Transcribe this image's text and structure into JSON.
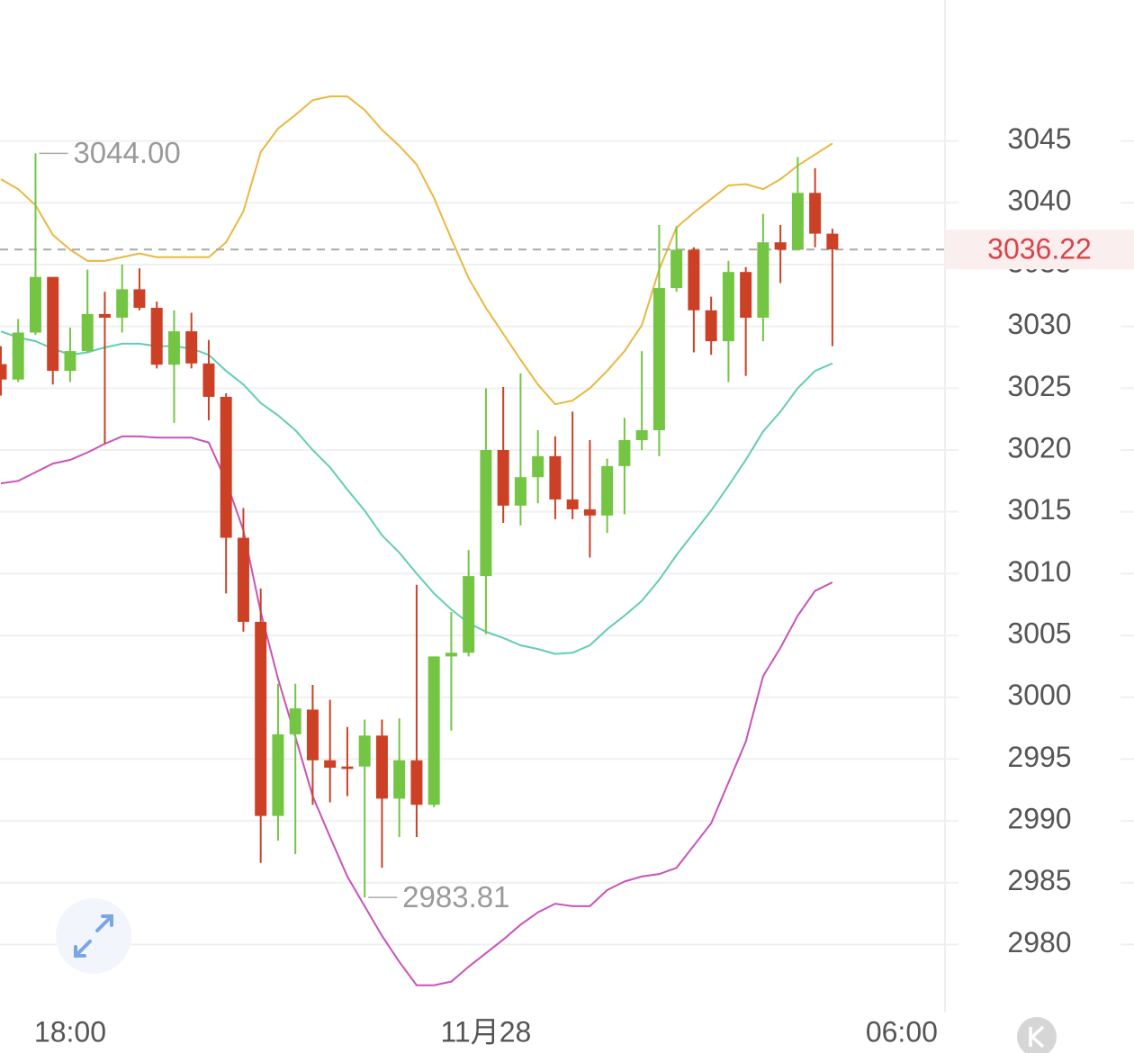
{
  "chart_data": {
    "type": "candlestick",
    "x": [
      -4,
      -3,
      -2,
      -1,
      0,
      1,
      2,
      3,
      4,
      5,
      6,
      7,
      8,
      9,
      10,
      11,
      12,
      13,
      14,
      15,
      16,
      17,
      18,
      19,
      20,
      21,
      22,
      23,
      24,
      25,
      26,
      27,
      28,
      29,
      30,
      31,
      32,
      33,
      34,
      35,
      36,
      37,
      38,
      39,
      40,
      41,
      42,
      43,
      44
    ],
    "open": [
      3026.95,
      3025.7,
      3029.5,
      3034.0,
      3026.4,
      3028.0,
      3031.0,
      3030.7,
      3033.0,
      3031.5,
      3026.9,
      3029.6,
      3027.0,
      3024.3,
      3012.9,
      3006.1,
      2990.4,
      2997.0,
      2999.0,
      2994.9,
      2994.4,
      2994.4,
      2996.9,
      2991.8,
      2994.9,
      2991.3,
      3003.3,
      3003.6,
      3009.8,
      3020.0,
      3015.5,
      3017.8,
      3019.5,
      3016.0,
      3015.2,
      3014.7,
      3018.7,
      3020.8,
      3021.6,
      3033.1,
      3036.2,
      3031.3,
      3028.8,
      3034.4,
      3030.7,
      3036.8,
      3036.2,
      3040.8,
      3037.5
    ],
    "high": [
      3028.4,
      3030.6,
      3044.0,
      3034.0,
      3029.9,
      3034.6,
      3032.8,
      3035.0,
      3034.7,
      3032.0,
      3031.3,
      3031.1,
      3028.9,
      3024.6,
      3015.3,
      3008.8,
      3001.1,
      3001.1,
      3001.0,
      2999.8,
      2997.6,
      2998.2,
      2998.2,
      2998.3,
      3009.1,
      3003.3,
      3006.9,
      3011.9,
      3025.0,
      3025.1,
      3026.2,
      3021.6,
      3021.1,
      3023.1,
      3020.8,
      3019.3,
      3022.6,
      3028.0,
      3038.2,
      3038.1,
      3036.4,
      3032.4,
      3035.3,
      3034.8,
      3039.1,
      3038.2,
      3043.7,
      3042.8,
      3037.9
    ],
    "low": [
      3024.4,
      3025.5,
      3029.3,
      3025.3,
      3025.5,
      3027.9,
      3020.5,
      3029.5,
      3031.3,
      3026.6,
      3022.2,
      3026.6,
      3022.4,
      3008.4,
      3005.3,
      2986.6,
      2988.4,
      2987.3,
      2991.3,
      2991.5,
      2992.0,
      2983.81,
      2986.2,
      2988.7,
      2988.7,
      2991.1,
      2997.3,
      3003.3,
      3005.1,
      3014.1,
      3013.9,
      3015.7,
      3014.4,
      3014.4,
      3011.3,
      3013.3,
      3014.8,
      3020.0,
      3019.5,
      3032.8,
      3027.9,
      3027.7,
      3025.5,
      3026.0,
      3028.8,
      3033.5,
      3036.2,
      3036.4,
      3028.4
    ],
    "close": [
      3025.7,
      3029.5,
      3034.0,
      3026.4,
      3028.0,
      3031.0,
      3030.7,
      3033.0,
      3031.5,
      3026.9,
      3029.6,
      3027.0,
      3024.3,
      3012.9,
      3006.1,
      2990.4,
      2997.0,
      2999.1,
      2994.9,
      2994.3,
      2994.2,
      2996.9,
      2991.8,
      2994.9,
      2991.3,
      3003.3,
      3003.6,
      3009.8,
      3020.0,
      3015.5,
      3017.8,
      3019.5,
      3016.0,
      3015.2,
      3014.7,
      3018.7,
      3020.8,
      3021.6,
      3033.1,
      3036.2,
      3031.3,
      3028.8,
      3034.4,
      3030.7,
      3036.8,
      3036.2,
      3040.8,
      3037.5,
      3036.22
    ],
    "up_color": "#74c544",
    "down_color": "#cc4126",
    "bands": [
      {
        "color": "#e8b840",
        "values": [
          3041.9,
          3041.1,
          3039.8,
          3037.4,
          3036.2,
          3035.3,
          3035.3,
          3035.6,
          3035.9,
          3035.6,
          3035.6,
          3035.6,
          3035.6,
          3036.8,
          3039.3,
          3044.1,
          3046.0,
          3047.1,
          3048.3,
          3048.6,
          3048.6,
          3047.5,
          3045.9,
          3044.6,
          3043.1,
          3040.4,
          3037.1,
          3033.9,
          3031.5,
          3029.4,
          3027.3,
          3025.3,
          3023.7,
          3024.0,
          3025.0,
          3026.4,
          3028.0,
          3030.1,
          3034.6,
          3038.0,
          3039.2,
          3040.3,
          3041.4,
          3041.5,
          3041.1,
          3041.9,
          3043.0,
          3043.9,
          3044.8
        ]
      },
      {
        "color": "#62cdb3",
        "values": [
          3029.6,
          3029.1,
          3028.8,
          3028.2,
          3027.7,
          3027.9,
          3028.3,
          3028.6,
          3028.6,
          3028.4,
          3028.4,
          3028.2,
          3027.7,
          3026.4,
          3025.3,
          3023.8,
          3022.8,
          3021.6,
          3020.0,
          3018.6,
          3016.8,
          3015.1,
          3013.1,
          3011.7,
          3010.0,
          3008.4,
          3007.1,
          3006.0,
          3005.3,
          3004.8,
          3004.2,
          3003.9,
          3003.5,
          3003.6,
          3004.2,
          3005.5,
          3006.6,
          3007.8,
          3009.5,
          3011.5,
          3013.3,
          3015.1,
          3017.1,
          3019.2,
          3021.5,
          3023.1,
          3025.0,
          3026.4,
          3027.0
        ]
      },
      {
        "color": "#c853b8",
        "values": [
          3017.3,
          3017.5,
          3018.2,
          3018.9,
          3019.2,
          3019.8,
          3020.5,
          3021.1,
          3021.1,
          3021.0,
          3021.0,
          3021.0,
          3020.6,
          3017.5,
          3013.5,
          3006.9,
          3001.5,
          2996.8,
          2992.0,
          2988.7,
          2985.5,
          2983.1,
          2980.7,
          2978.6,
          2976.7,
          2976.7,
          2977.0,
          2978.2,
          2979.3,
          2980.4,
          2981.6,
          2982.6,
          2983.3,
          2983.1,
          2983.1,
          2984.4,
          2985.1,
          2985.5,
          2985.7,
          2986.2,
          2988.0,
          2989.8,
          2993.1,
          2996.4,
          3001.7,
          3004.0,
          3006.6,
          3008.6,
          3009.3
        ]
      }
    ],
    "annotations": [
      {
        "x": -2,
        "value": 3044,
        "label": "3044.00"
      },
      {
        "x": 17,
        "value": 2983.81,
        "label": "2983.81"
      }
    ],
    "last_price": {
      "value": 3036.22,
      "label": "3036.22",
      "color": "#d9444a"
    },
    "xlim": [
      -4.05,
      50.5
    ],
    "xticks": [
      {
        "value": 0,
        "label": "18:00"
      },
      {
        "value": 24,
        "label": "11月28"
      },
      {
        "value": 48,
        "label": "06:00"
      }
    ],
    "ylim": [
      2974.5,
      3056.4
    ],
    "yticks": [
      2980,
      2985,
      2990,
      2995,
      3000,
      3005,
      3010,
      3015,
      3020,
      3025,
      3030,
      3035,
      3040,
      3045
    ],
    "grid": true
  }
}
